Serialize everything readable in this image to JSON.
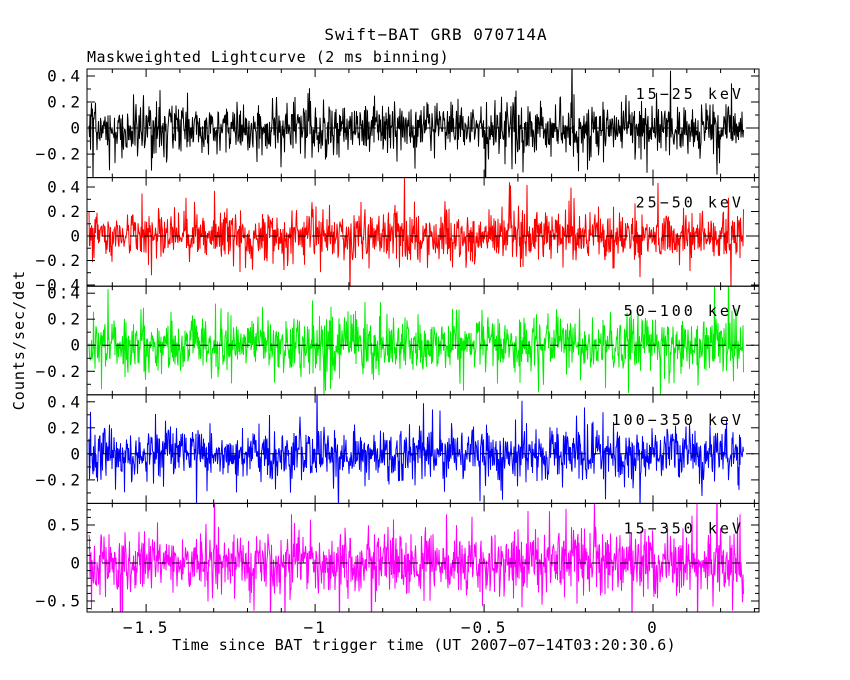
{
  "page": {
    "background": "#ffffff",
    "frame_color": "#000000"
  },
  "chart_data": {
    "type": "line",
    "title": "Swift−BAT GRB 070714A",
    "subtitle": "Maskweighted Lightcurve (2 ms binning)",
    "xlabel": "Time since BAT trigger time (UT 2007−07−14T03:20:30.6)",
    "ylabel": "Counts/sec/det",
    "x_range": [
      -1.675,
      0.3136
    ],
    "x_ticks": [
      {
        "v": -1.5,
        "label": "−1.5"
      },
      {
        "v": -1.0,
        "label": "−1"
      },
      {
        "v": -0.5,
        "label": "−0.5"
      },
      {
        "v": 0.0,
        "label": "0"
      }
    ],
    "x_minor_step": 0.1,
    "data_t_start": -1.669,
    "data_t_end": 0.269,
    "grid": false,
    "legend_position": "none",
    "zero_line": {
      "style": "dashed",
      "color": "#000000"
    },
    "noise_tail_frac": 0.07,
    "noise_tail_mult": 2.1,
    "panels": [
      {
        "label": "15−25 keV",
        "color": "#000000",
        "ylim": [
          -0.381,
          0.454
        ],
        "y_major_step": 0.2,
        "y_minor_step": 0.1,
        "yticks": [
          {
            "v": 0.4,
            "label": "0.4"
          },
          {
            "v": 0.2,
            "label": "0.2"
          },
          {
            "v": 0,
            "label": "0"
          },
          {
            "v": -0.2,
            "label": "−0.2"
          }
        ],
        "noise_sigma": 0.098,
        "seed": 101
      },
      {
        "label": "25−50 keV",
        "color": "#ff0000",
        "ylim": [
          -0.41,
          0.477
        ],
        "y_major_step": 0.2,
        "y_minor_step": 0.1,
        "yticks": [
          {
            "v": 0.4,
            "label": "0.4"
          },
          {
            "v": 0.2,
            "label": "0.2"
          },
          {
            "v": 0,
            "label": "0"
          },
          {
            "v": -0.2,
            "label": "−0.2"
          },
          {
            "v": -0.4,
            "label": "−0.4"
          }
        ],
        "noise_sigma": 0.101,
        "seed": 202
      },
      {
        "label": "50−100 keV",
        "color": "#00ee00",
        "ylim": [
          -0.381,
          0.454
        ],
        "y_major_step": 0.2,
        "y_minor_step": 0.1,
        "yticks": [
          {
            "v": 0.4,
            "label": "0.4"
          },
          {
            "v": 0.2,
            "label": "0.2"
          },
          {
            "v": 0,
            "label": "0"
          },
          {
            "v": -0.2,
            "label": "−0.2"
          }
        ],
        "noise_sigma": 0.108,
        "seed": 303
      },
      {
        "label": "100−350 keV",
        "color": "#0000ff",
        "ylim": [
          -0.381,
          0.454
        ],
        "y_major_step": 0.2,
        "y_minor_step": 0.1,
        "yticks": [
          {
            "v": 0.4,
            "label": "0.4"
          },
          {
            "v": 0.2,
            "label": "0.2"
          },
          {
            "v": 0,
            "label": "0"
          },
          {
            "v": -0.2,
            "label": "−0.2"
          }
        ],
        "noise_sigma": 0.1,
        "seed": 404
      },
      {
        "label": "15−350 keV",
        "color": "#ff00ff",
        "ylim": [
          -0.645,
          0.784
        ],
        "y_major_step": 0.5,
        "y_minor_step": 0.1,
        "yticks": [
          {
            "v": 0.5,
            "label": "0.5"
          },
          {
            "v": 0,
            "label": "0"
          },
          {
            "v": -0.5,
            "label": "−0.5"
          }
        ],
        "noise_sigma": 0.212,
        "seed": 505
      }
    ]
  }
}
